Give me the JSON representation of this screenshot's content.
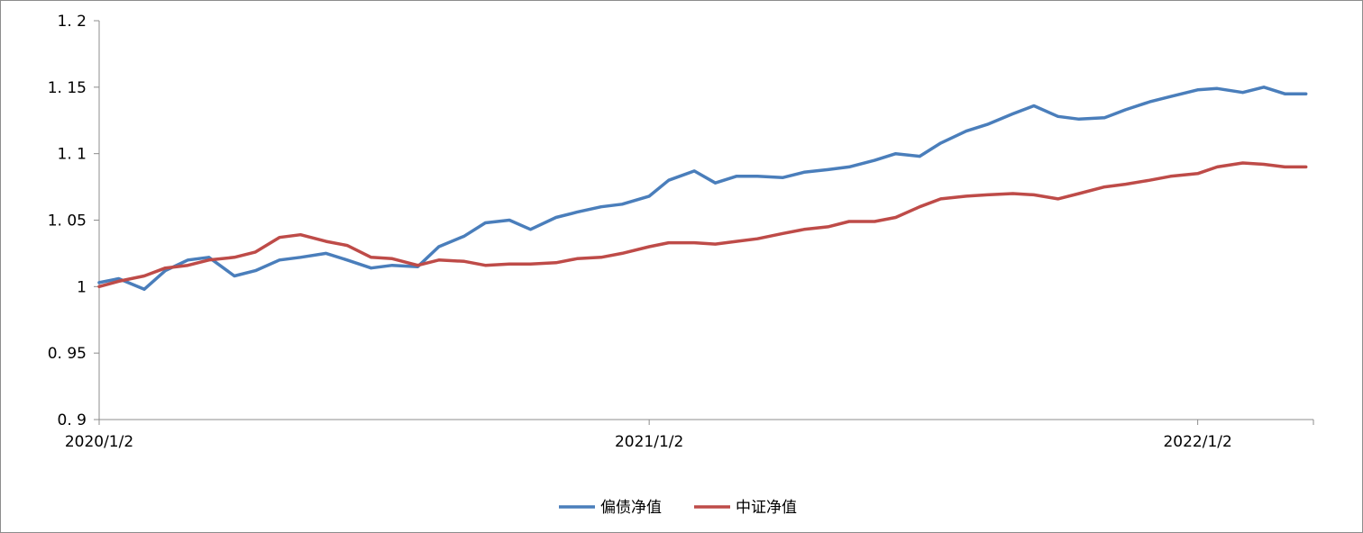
{
  "chart_data": {
    "type": "line",
    "title": "",
    "xlabel": "",
    "ylabel": "",
    "x_tick_labels": [
      "2020/1/2",
      "2021/1/2",
      "2022/1/2"
    ],
    "y_tick_labels": [
      "0. 9",
      "0. 95",
      "1",
      "1. 05",
      "1. 1",
      "1. 15",
      "1. 2"
    ],
    "ylim": [
      0.9,
      1.2
    ],
    "xlim": [
      "2020-01-02",
      "2022-03-20"
    ],
    "grid": false,
    "legend_position": "bottom",
    "x": [
      "2020-01-02",
      "2020-01-15",
      "2020-02-01",
      "2020-02-15",
      "2020-03-01",
      "2020-03-15",
      "2020-04-01",
      "2020-04-15",
      "2020-05-01",
      "2020-05-15",
      "2020-06-01",
      "2020-06-15",
      "2020-07-01",
      "2020-07-15",
      "2020-08-01",
      "2020-08-15",
      "2020-09-01",
      "2020-09-15",
      "2020-10-01",
      "2020-10-15",
      "2020-11-01",
      "2020-11-15",
      "2020-12-01",
      "2020-12-15",
      "2021-01-02",
      "2021-01-15",
      "2021-02-01",
      "2021-02-15",
      "2021-03-01",
      "2021-03-15",
      "2021-04-01",
      "2021-04-15",
      "2021-05-01",
      "2021-05-15",
      "2021-06-01",
      "2021-06-15",
      "2021-07-01",
      "2021-07-15",
      "2021-08-01",
      "2021-08-15",
      "2021-09-01",
      "2021-09-15",
      "2021-10-01",
      "2021-10-15",
      "2021-11-01",
      "2021-11-15",
      "2021-12-01",
      "2021-12-15",
      "2022-01-02",
      "2022-01-15",
      "2022-02-01",
      "2022-02-15",
      "2022-03-01",
      "2022-03-15"
    ],
    "series": [
      {
        "name": "偏债净值",
        "color": "#4a7ebb",
        "values": [
          1.003,
          1.006,
          0.998,
          1.012,
          1.02,
          1.022,
          1.008,
          1.012,
          1.02,
          1.022,
          1.025,
          1.02,
          1.014,
          1.016,
          1.015,
          1.03,
          1.038,
          1.048,
          1.05,
          1.043,
          1.052,
          1.056,
          1.06,
          1.062,
          1.068,
          1.08,
          1.087,
          1.078,
          1.083,
          1.083,
          1.082,
          1.086,
          1.088,
          1.09,
          1.095,
          1.1,
          1.098,
          1.108,
          1.117,
          1.122,
          1.13,
          1.136,
          1.128,
          1.126,
          1.127,
          1.133,
          1.139,
          1.143,
          1.148,
          1.149,
          1.146,
          1.15,
          1.145,
          1.145
        ]
      },
      {
        "name": "中证净值",
        "color": "#be4b48",
        "values": [
          1.0,
          1.004,
          1.008,
          1.014,
          1.016,
          1.02,
          1.022,
          1.026,
          1.037,
          1.039,
          1.034,
          1.031,
          1.022,
          1.021,
          1.016,
          1.02,
          1.019,
          1.016,
          1.017,
          1.017,
          1.018,
          1.021,
          1.022,
          1.025,
          1.03,
          1.033,
          1.033,
          1.032,
          1.034,
          1.036,
          1.04,
          1.043,
          1.045,
          1.049,
          1.049,
          1.052,
          1.06,
          1.066,
          1.068,
          1.069,
          1.07,
          1.069,
          1.066,
          1.07,
          1.075,
          1.077,
          1.08,
          1.083,
          1.085,
          1.09,
          1.093,
          1.092,
          1.09,
          1.09
        ]
      }
    ]
  }
}
